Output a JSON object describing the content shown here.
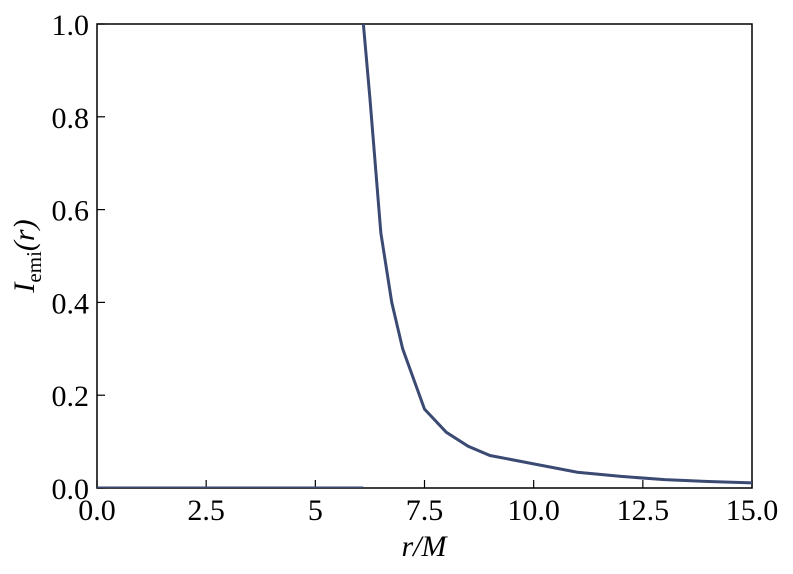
{
  "chart_data": {
    "type": "line",
    "xlabel": "r/M",
    "ylabel": {
      "main": "I",
      "sub": "emi",
      "tail": "(r)"
    },
    "x": [
      0,
      6.1,
      6.1,
      6.1,
      6.25,
      6.5,
      6.75,
      7,
      7.5,
      8,
      8.5,
      9,
      10,
      11,
      12,
      13,
      14,
      15
    ],
    "series": [
      {
        "color": "#3b4a72",
        "values": [
          0,
          0,
          null,
          1.0,
          0.84,
          0.55,
          0.4,
          0.3,
          0.17,
          0.12,
          0.09,
          0.07,
          0.052,
          0.034,
          0.025,
          0.018,
          0.014,
          0.011
        ]
      }
    ],
    "xlim": [
      0,
      15
    ],
    "ylim": [
      0,
      1
    ],
    "xticks": [
      {
        "value": 0,
        "label": "0.0"
      },
      2.5,
      5.0,
      7.5,
      {
        "value": 10,
        "label": "10.0"
      },
      12.5,
      {
        "value": 15,
        "label": "15.0"
      }
    ],
    "yticks": [
      {
        "value": 0,
        "label": "0.0"
      },
      0.2,
      0.4,
      0.6,
      0.8,
      {
        "value": 1,
        "label": "1.0"
      }
    ]
  }
}
